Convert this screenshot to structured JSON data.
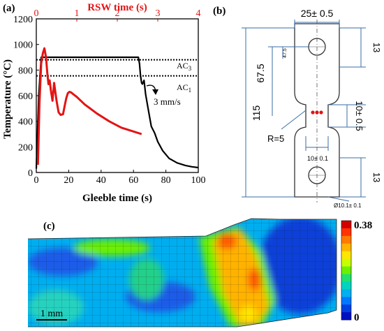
{
  "panel_a": {
    "label": "(a)",
    "chart_data": {
      "type": "line",
      "xlabel": "Gleeble time (s)",
      "x2label": "RSW time (s)",
      "ylabel": "Temperature (°C)",
      "xlim": [
        0,
        100
      ],
      "x2lim": [
        0,
        4
      ],
      "ylim": [
        0,
        1200
      ],
      "xticks": [
        "0",
        "20",
        "40",
        "60",
        "80",
        "100"
      ],
      "x2ticks": [
        "0",
        "1",
        "2",
        "3",
        "4"
      ],
      "yticks": [
        "0",
        "200",
        "400",
        "600",
        "800",
        "1000",
        "1200"
      ],
      "colors": {
        "gleeble": "#000000",
        "rsw": "#e31414"
      },
      "series": [
        {
          "axis": "bottom",
          "x": [
            0,
            1.5,
            3,
            5,
            30,
            60,
            63,
            63.7,
            64.3,
            65,
            65.5,
            66.5,
            67.5,
            69,
            71,
            73,
            75,
            78,
            82,
            87,
            92,
            96,
            100
          ],
          "y": [
            30,
            600,
            900,
            900,
            900,
            900,
            900,
            850,
            760,
            700,
            690,
            720,
            610,
            500,
            360,
            310,
            240,
            170,
            110,
            75,
            55,
            45,
            38
          ]
        },
        {
          "axis": "top",
          "x": [
            0.04,
            0.08,
            0.12,
            0.16,
            0.2,
            0.24,
            0.27,
            0.3,
            0.33,
            0.36,
            0.4,
            0.44,
            0.5,
            0.55,
            0.6,
            0.66,
            0.7,
            0.74,
            0.78,
            0.82,
            0.86,
            0.9,
            1.0,
            1.2,
            1.5,
            1.8,
            2.1,
            2.4,
            2.6
          ],
          "y": [
            60,
            550,
            850,
            930,
            970,
            900,
            780,
            690,
            720,
            640,
            560,
            700,
            560,
            470,
            450,
            455,
            520,
            580,
            620,
            630,
            625,
            615,
            590,
            530,
            460,
            400,
            350,
            320,
            300
          ]
        }
      ],
      "annotations": {
        "ac3": "AC",
        "ac3_sub": "3",
        "ac1": "AC",
        "ac1_sub": "1",
        "rate": "3 mm/s"
      },
      "ac3_value": 880,
      "ac1_value": 755
    }
  },
  "panel_b": {
    "label": "(b)",
    "dims": {
      "width": "25± 0.5",
      "top": "13",
      "bottom": "13",
      "total": "115",
      "inner": "67.5",
      "small": "47.5",
      "gauge_width": "10± 0.5",
      "gauge_length": "10± 0.1",
      "radius": "R=5",
      "hole": "Ø10.1± 0.1"
    }
  },
  "panel_c": {
    "label": "(c)",
    "scale_max": "0.38",
    "scale_min": "0",
    "scale_bar": "1 mm",
    "colors": [
      "#d40000",
      "#ff3300",
      "#ff7a00",
      "#ffb300",
      "#ffe600",
      "#c8ff00",
      "#6cf000",
      "#22e070",
      "#00d4c0",
      "#00b0f0",
      "#0078ff",
      "#0040e0",
      "#0010c0"
    ]
  }
}
